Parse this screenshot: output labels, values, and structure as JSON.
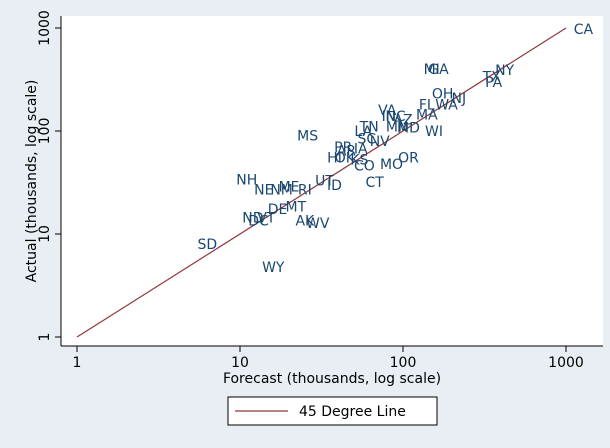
{
  "chart_data": {
    "type": "scatter",
    "title": "",
    "xlabel": "Forecast (thousands, log scale)",
    "ylabel": "Actual (thousands, log scale)",
    "x_scale": "log",
    "y_scale": "log",
    "xlim": [
      0.85,
      2000
    ],
    "ylim": [
      0.8,
      1400
    ],
    "x_ticks": [
      {
        "value": 1,
        "label": "1"
      },
      {
        "value": 10,
        "label": "10"
      },
      {
        "value": 100,
        "label": "100"
      },
      {
        "value": 1000,
        "label": "1000"
      }
    ],
    "y_ticks": [
      {
        "value": 1,
        "label": "1"
      },
      {
        "value": 10,
        "label": "10"
      },
      {
        "value": 100,
        "label": "100"
      },
      {
        "value": 1000,
        "label": "1000"
      }
    ],
    "grid": false,
    "legend_position": "bottom",
    "marker_style": "text-label",
    "colors": {
      "marker_text": "#1a476f",
      "reference_line": "#90353b",
      "background": "#e8eef3",
      "plot_background": "#ffffff",
      "axis": "#000000"
    },
    "series": [
      {
        "name": "",
        "points": [
          {
            "label": "CA",
            "x": 1280,
            "y": 980
          },
          {
            "label": "NY",
            "x": 420,
            "y": 390
          },
          {
            "label": "TX",
            "x": 350,
            "y": 340
          },
          {
            "label": "PA",
            "x": 360,
            "y": 300
          },
          {
            "label": "MI",
            "x": 150,
            "y": 400
          },
          {
            "label": "GA",
            "x": 165,
            "y": 400
          },
          {
            "label": "OH",
            "x": 175,
            "y": 230
          },
          {
            "label": "NJ",
            "x": 220,
            "y": 210
          },
          {
            "label": "FL",
            "x": 140,
            "y": 180
          },
          {
            "label": "WA",
            "x": 185,
            "y": 180
          },
          {
            "label": "MA",
            "x": 140,
            "y": 145
          },
          {
            "label": "WI",
            "x": 155,
            "y": 100
          },
          {
            "label": "VA",
            "x": 80,
            "y": 160
          },
          {
            "label": "IN",
            "x": 82,
            "y": 140
          },
          {
            "label": "NC",
            "x": 90,
            "y": 140
          },
          {
            "label": "AZ",
            "x": 100,
            "y": 130
          },
          {
            "label": "MN",
            "x": 92,
            "y": 110
          },
          {
            "label": "MD",
            "x": 108,
            "y": 108
          },
          {
            "label": "LA",
            "x": 57,
            "y": 100
          },
          {
            "label": "TN",
            "x": 62,
            "y": 110
          },
          {
            "label": "SC",
            "x": 60,
            "y": 85
          },
          {
            "label": "NV",
            "x": 72,
            "y": 80
          },
          {
            "label": "MS",
            "x": 26,
            "y": 90
          },
          {
            "label": "PR",
            "x": 43,
            "y": 70
          },
          {
            "label": "AR",
            "x": 45,
            "y": 65
          },
          {
            "label": "IA",
            "x": 55,
            "y": 68
          },
          {
            "label": "HI",
            "x": 38,
            "y": 55
          },
          {
            "label": "OK",
            "x": 44,
            "y": 55
          },
          {
            "label": "KS",
            "x": 54,
            "y": 53
          },
          {
            "label": "CO",
            "x": 58,
            "y": 46
          },
          {
            "label": "MO",
            "x": 85,
            "y": 48
          },
          {
            "label": "OR",
            "x": 108,
            "y": 55
          },
          {
            "label": "UT",
            "x": 33,
            "y": 33
          },
          {
            "label": "ID",
            "x": 38,
            "y": 30
          },
          {
            "label": "CT",
            "x": 67,
            "y": 32
          },
          {
            "label": "NH",
            "x": 11,
            "y": 34
          },
          {
            "label": "NE",
            "x": 14,
            "y": 27
          },
          {
            "label": "ME",
            "x": 20,
            "y": 29
          },
          {
            "label": "NM",
            "x": 18,
            "y": 27
          },
          {
            "label": "RI",
            "x": 25,
            "y": 27
          },
          {
            "label": "DE",
            "x": 17,
            "y": 17.5
          },
          {
            "label": "MT",
            "x": 22,
            "y": 18.5
          },
          {
            "label": "ND",
            "x": 12,
            "y": 14.5
          },
          {
            "label": "DC",
            "x": 13,
            "y": 13.5
          },
          {
            "label": "VT",
            "x": 14.5,
            "y": 14.5
          },
          {
            "label": "AK",
            "x": 25,
            "y": 13.5
          },
          {
            "label": "WV",
            "x": 30,
            "y": 12.8
          },
          {
            "label": "SD",
            "x": 6.3,
            "y": 8
          },
          {
            "label": "WY",
            "x": 16,
            "y": 4.8
          }
        ]
      }
    ],
    "reference_line": {
      "label": "45 Degree Line",
      "from": [
        1,
        1
      ],
      "to": [
        1000,
        1000
      ]
    },
    "legend": [
      {
        "label": "45 Degree Line",
        "marker": "line",
        "color": "#90353b"
      }
    ]
  }
}
